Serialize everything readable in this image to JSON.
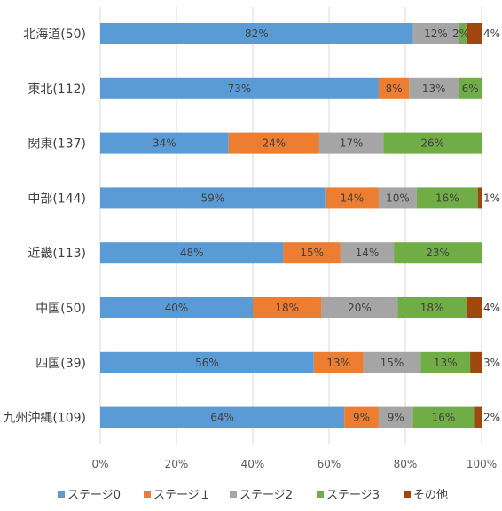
{
  "chart_data": {
    "type": "bar",
    "orientation": "horizontal",
    "stacked": "percent",
    "categories": [
      "北海道(50)",
      "東北(112)",
      "関東(137)",
      "中部(144)",
      "近畿(113)",
      "中国(50)",
      "四国(39)",
      "九州沖縄(109)"
    ],
    "series": [
      {
        "name": "ステージ0",
        "color": "#5b9bd5",
        "values": [
          82,
          73,
          34,
          59,
          48,
          40,
          56,
          64
        ],
        "labels": [
          "82%",
          "73%",
          "34%",
          "59%",
          "48%",
          "40%",
          "56%",
          "64%"
        ]
      },
      {
        "name": "ステージ１",
        "color": "#ed7d31",
        "values": [
          0,
          8,
          24,
          14,
          15,
          18,
          13,
          9
        ],
        "labels": [
          "",
          "8%",
          "24%",
          "14%",
          "15%",
          "18%",
          "13%",
          "9%"
        ]
      },
      {
        "name": "ステージ2",
        "color": "#a5a5a5",
        "values": [
          12,
          13,
          17,
          10,
          14,
          20,
          15,
          9
        ],
        "labels": [
          "12%",
          "13%",
          "17%",
          "10%",
          "14%",
          "20%",
          "15%",
          "9%"
        ]
      },
      {
        "name": "ステージ3",
        "color": "#70ad47",
        "values": [
          2,
          6,
          26,
          16,
          23,
          18,
          13,
          16
        ],
        "labels": [
          "2%",
          "6%",
          "26%",
          "16%",
          "23%",
          "18%",
          "13%",
          "16%"
        ]
      },
      {
        "name": "その他",
        "color": "#9e480e",
        "values": [
          4,
          0,
          0,
          1,
          0,
          4,
          3,
          2
        ],
        "labels": [
          "4%",
          "",
          "",
          "1%",
          "",
          "4%",
          "3%",
          "2%"
        ]
      }
    ],
    "xlim": [
      0,
      100
    ],
    "xticks": [
      "0%",
      "20%",
      "40%",
      "60%",
      "80%",
      "100%"
    ],
    "grid": "vertical",
    "legend_position": "bottom"
  }
}
